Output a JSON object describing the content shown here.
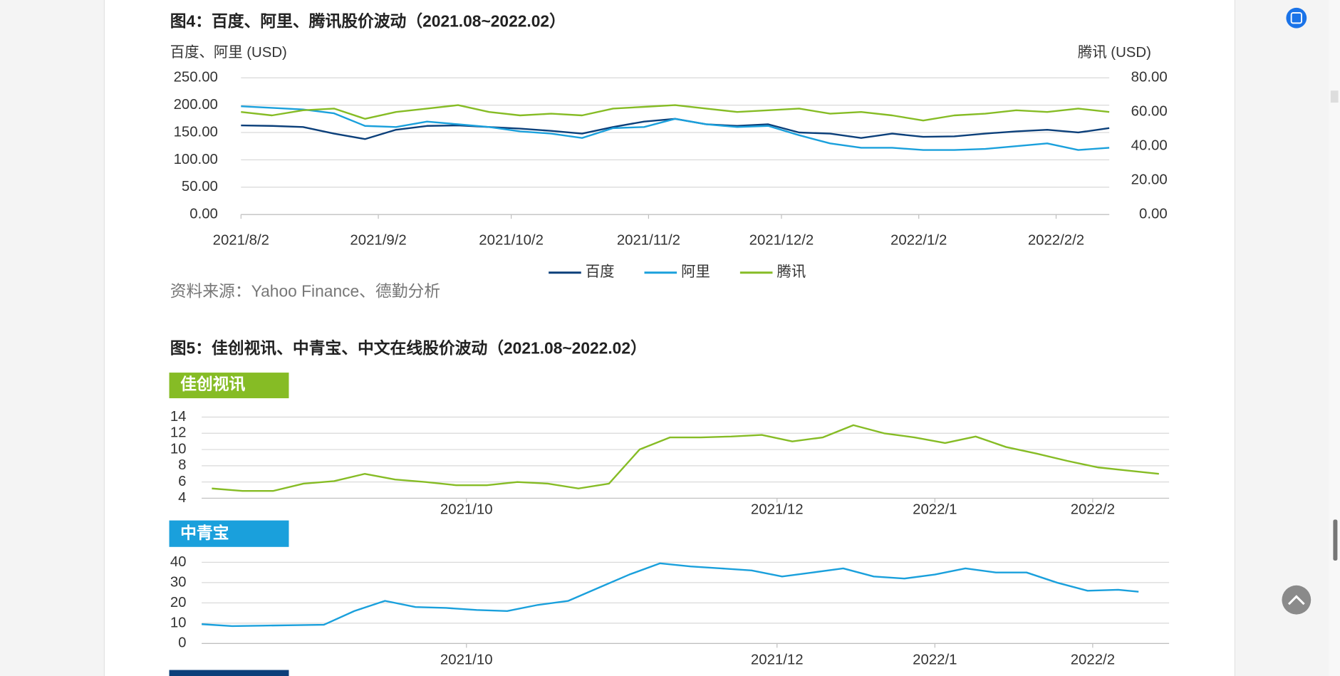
{
  "figure5_title": "图5：佳创视讯、中青宝、中文在线股价波动（2021.08~2022.02）",
  "source": "资料来源：Yahoo Finance、德勤分析",
  "chart_data": [
    {
      "type": "line",
      "title": "图4：百度、阿里、腾讯股价波动（2021.08~2022.02）",
      "ylabel": "百度、阿里 (USD)",
      "y2label": "腾讯 (USD)",
      "x": [
        0,
        7,
        14,
        21,
        28,
        35,
        42,
        49,
        56,
        63,
        70,
        77,
        84,
        91,
        98,
        105,
        112,
        119,
        126,
        133,
        140,
        147,
        154,
        161,
        168,
        175,
        182,
        189,
        196
      ],
      "xlim": [
        0,
        196
      ],
      "xticks": [
        {
          "value": 0,
          "label": "2021/8/2"
        },
        {
          "value": 31,
          "label": "2021/9/2"
        },
        {
          "value": 61,
          "label": "2021/10/2"
        },
        {
          "value": 92,
          "label": "2021/11/2"
        },
        {
          "value": 122,
          "label": "2021/12/2"
        },
        {
          "value": 153,
          "label": "2022/1/2"
        },
        {
          "value": 184,
          "label": "2022/2/2"
        }
      ],
      "ylim": [
        0,
        250
      ],
      "yticks": [
        {
          "value": 0,
          "label": "0.00"
        },
        {
          "value": 50,
          "label": "50.00"
        },
        {
          "value": 100,
          "label": "100.00"
        },
        {
          "value": 150,
          "label": "150.00"
        },
        {
          "value": 200,
          "label": "200.00"
        },
        {
          "value": 250,
          "label": "250.00"
        }
      ],
      "y2lim": [
        0,
        80
      ],
      "y2ticks": [
        {
          "value": 0,
          "label": "0.00"
        },
        {
          "value": 20,
          "label": "20.00"
        },
        {
          "value": 40,
          "label": "40.00"
        },
        {
          "value": 60,
          "label": "60.00"
        },
        {
          "value": 80,
          "label": "80.00"
        }
      ],
      "grid": true,
      "legend": "bottom",
      "series": [
        {
          "name": "百度",
          "color": "#0b3f7a",
          "values": [
            163,
            162,
            160,
            148,
            138,
            155,
            162,
            163,
            160,
            157,
            153,
            148,
            160,
            170,
            175,
            165,
            162,
            165,
            150,
            148,
            140,
            148,
            142,
            143,
            148,
            152,
            155,
            150,
            158
          ]
        },
        {
          "name": "阿里",
          "color": "#1aa0dc",
          "values": [
            198,
            195,
            192,
            185,
            162,
            160,
            170,
            165,
            160,
            152,
            148,
            140,
            158,
            160,
            175,
            165,
            160,
            162,
            145,
            130,
            122,
            122,
            118,
            118,
            120,
            125,
            130,
            118,
            122
          ]
        },
        {
          "name": "腾讯",
          "color": "#86bc25",
          "axis": "y2",
          "values": [
            60,
            58,
            61,
            62,
            56,
            60,
            62,
            64,
            60,
            58,
            59,
            58,
            62,
            63,
            64,
            62,
            60,
            61,
            62,
            59,
            60,
            58,
            55,
            58,
            59,
            61,
            60,
            62,
            60
          ]
        }
      ]
    },
    {
      "type": "line",
      "title": "佳创视讯",
      "color": "#86bc25",
      "x": [
        11,
        17,
        23,
        29,
        35,
        41,
        47,
        53,
        59,
        65,
        71,
        77,
        83,
        89,
        95,
        101,
        107,
        113,
        119,
        125,
        131,
        137,
        143,
        149,
        155,
        161,
        167,
        173,
        179,
        185,
        191,
        197
      ],
      "values": [
        5.2,
        4.9,
        4.9,
        5.8,
        6.1,
        7.0,
        6.3,
        6.0,
        5.6,
        5.6,
        6.0,
        5.8,
        5.2,
        5.8,
        10.0,
        11.5,
        11.5,
        11.6,
        11.8,
        11.0,
        11.5,
        13.0,
        12.0,
        11.5,
        10.8,
        11.6,
        10.3,
        9.5,
        8.6,
        7.8,
        7.4,
        7.0
      ],
      "xlim": [
        9,
        199
      ],
      "xticks": [
        {
          "value": 61,
          "label": "2021/10"
        },
        {
          "value": 122,
          "label": "2021/12"
        },
        {
          "value": 153,
          "label": "2022/1"
        },
        {
          "value": 184,
          "label": "2022/2"
        }
      ],
      "ylim": [
        4,
        14
      ],
      "yticks": [
        4,
        6,
        8,
        10,
        12,
        14
      ],
      "grid": true
    },
    {
      "type": "line",
      "title": "中青宝",
      "color": "#1aa0dc",
      "x": [
        9,
        15,
        21,
        27,
        33,
        39,
        45,
        51,
        57,
        63,
        69,
        75,
        81,
        87,
        93,
        99,
        105,
        111,
        117,
        123,
        129,
        135,
        141,
        147,
        153,
        159,
        165,
        171,
        177,
        183,
        189,
        193
      ],
      "values": [
        9.5,
        8.6,
        8.8,
        9.0,
        9.2,
        16,
        21,
        18,
        17.5,
        16.5,
        16,
        19,
        21,
        27.5,
        34,
        39.5,
        38,
        37,
        36,
        33,
        35,
        37,
        33,
        32,
        34,
        37,
        35,
        35,
        30,
        26,
        26.5,
        25.5
      ],
      "xlim": [
        9,
        199
      ],
      "xticks": [
        {
          "value": 61,
          "label": "2021/10"
        },
        {
          "value": 122,
          "label": "2021/12"
        },
        {
          "value": 153,
          "label": "2022/1"
        },
        {
          "value": 184,
          "label": "2022/2"
        }
      ],
      "ylim": [
        0,
        40
      ],
      "yticks": [
        0,
        10,
        20,
        30,
        40
      ],
      "grid": true
    }
  ]
}
